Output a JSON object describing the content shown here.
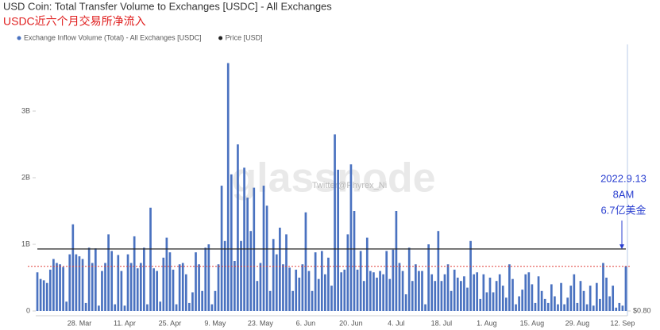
{
  "chart_data": {
    "type": "bar",
    "title": "USD Coin: Total Transfer Volume to Exchanges [USDC] - All Exchanges",
    "subtitle": "USDC近六个月交易所净流入",
    "watermark": "glassnode",
    "watermark_credit": "Twitter@Phyrex_Ni",
    "annotation": [
      "2022.9.13",
      "8AM",
      "6.7亿美金"
    ],
    "reference_line": {
      "value": 0.67,
      "color": "#e0403a"
    },
    "legend_position": "top-left",
    "categories": [
      null,
      null,
      null,
      null,
      null,
      null,
      null,
      null,
      null,
      null,
      null,
      null,
      null,
      "28. Mar",
      null,
      null,
      null,
      null,
      null,
      null,
      null,
      null,
      null,
      null,
      null,
      null,
      null,
      "11. Apr",
      null,
      null,
      null,
      null,
      null,
      null,
      null,
      null,
      null,
      null,
      null,
      null,
      null,
      "25. Apr",
      null,
      null,
      null,
      null,
      null,
      null,
      null,
      null,
      null,
      null,
      null,
      null,
      null,
      "9. May",
      null,
      null,
      null,
      null,
      null,
      null,
      null,
      null,
      null,
      null,
      null,
      null,
      null,
      "23. May",
      null,
      null,
      null,
      null,
      null,
      null,
      null,
      null,
      null,
      null,
      null,
      null,
      null,
      "6. Jun",
      null,
      null,
      null,
      null,
      null,
      null,
      null,
      null,
      null,
      null,
      null,
      null,
      null,
      "20. Jun",
      null,
      null,
      null,
      null,
      null,
      null,
      null,
      null,
      null,
      null,
      null,
      null,
      null,
      "4. Jul",
      null,
      null,
      null,
      null,
      null,
      null,
      null,
      null,
      null,
      null,
      null,
      null,
      null,
      "18. Jul",
      null,
      null,
      null,
      null,
      null,
      null,
      null,
      null,
      null,
      null,
      null,
      null,
      null,
      "1. Aug",
      null,
      null,
      null,
      null,
      null,
      null,
      null,
      null,
      null,
      null,
      null,
      null,
      null,
      "15. Aug",
      null,
      null,
      null,
      null,
      null,
      null,
      null,
      null,
      null,
      null,
      null,
      null,
      null,
      "29. Aug",
      null,
      null,
      null,
      null,
      null,
      null,
      null,
      null,
      null,
      null,
      null,
      null,
      null,
      "12. Sep",
      null
    ],
    "series": [
      {
        "name": "Exchange Inflow Volume (Total) - All Exchanges [USDC]",
        "color": "#4a72c0",
        "values": [
          0.58,
          0.48,
          0.46,
          0.42,
          0.62,
          0.78,
          0.72,
          0.7,
          0.66,
          0.14,
          0.85,
          1.3,
          0.85,
          0.82,
          0.78,
          0.12,
          0.95,
          0.72,
          0.94,
          0.08,
          0.6,
          0.72,
          1.15,
          0.9,
          0.1,
          0.84,
          0.6,
          0.08,
          0.85,
          0.72,
          1.12,
          0.64,
          0.72,
          0.95,
          0.1,
          1.55,
          0.64,
          0.6,
          0.14,
          0.8,
          1.1,
          0.88,
          0.62,
          0.1,
          0.7,
          0.72,
          0.55,
          0.12,
          0.28,
          0.88,
          0.7,
          0.3,
          0.95,
          1.0,
          0.1,
          0.3,
          0.7,
          1.88,
          1.05,
          3.72,
          2.05,
          0.75,
          2.5,
          1.05,
          2.15,
          1.7,
          1.2,
          1.85,
          0.45,
          0.72,
          1.88,
          1.58,
          0.3,
          1.08,
          0.85,
          1.25,
          0.7,
          1.15,
          0.65,
          0.3,
          0.62,
          0.5,
          0.7,
          1.48,
          0.6,
          0.3,
          0.88,
          0.48,
          0.9,
          0.55,
          0.8,
          0.38,
          2.65,
          2.12,
          0.58,
          0.62,
          1.15,
          2.2,
          1.5,
          0.62,
          0.9,
          0.45,
          1.1,
          0.6,
          0.58,
          0.5,
          0.6,
          0.55,
          0.9,
          0.48,
          0.92,
          1.5,
          0.72,
          0.6,
          0.25,
          0.95,
          0.45,
          0.7,
          0.6,
          0.6,
          0.1,
          1.0,
          0.55,
          0.45,
          1.2,
          0.45,
          0.55,
          0.7,
          0.3,
          0.62,
          0.5,
          0.45,
          0.52,
          0.35,
          1.05,
          0.55,
          0.58,
          0.18,
          0.55,
          0.28,
          0.5,
          0.28,
          0.45,
          0.55,
          0.38,
          0.2,
          0.7,
          0.48,
          0.1,
          0.22,
          0.32,
          0.55,
          0.58,
          0.4,
          0.12,
          0.52,
          0.3,
          0.18,
          0.12,
          0.4,
          0.22,
          0.1,
          0.42,
          0.1,
          0.2,
          0.38,
          0.55,
          0.12,
          0.45,
          0.3,
          0.1,
          0.38,
          0.08,
          0.42,
          0.18,
          0.72,
          0.5,
          0.22,
          0.38,
          0.05,
          0.12,
          0.08,
          0.67
        ]
      },
      {
        "name": "Price [USD]",
        "color": "#222222",
        "type": "line",
        "axis": "y2",
        "values": [
          1,
          1,
          1,
          1,
          1,
          1,
          1,
          1,
          1,
          1,
          1,
          1,
          1,
          1,
          1,
          1,
          1,
          1,
          1,
          1,
          1,
          1,
          1,
          1,
          1,
          1,
          1,
          1,
          1,
          1,
          1,
          1,
          1,
          1,
          1,
          1,
          1,
          1,
          1,
          1,
          1,
          1,
          1,
          1,
          1,
          1,
          1,
          1,
          1,
          1,
          1,
          1,
          1,
          1,
          1,
          1,
          1,
          1,
          1,
          1,
          1,
          1,
          1,
          1,
          1,
          1,
          1,
          1,
          1,
          1,
          1,
          1,
          1,
          1,
          1,
          1,
          1,
          1,
          1,
          1,
          1,
          1,
          1,
          1,
          1,
          1,
          1,
          1,
          1,
          1,
          1,
          1,
          1,
          1,
          1,
          1,
          1,
          1,
          1,
          1,
          1,
          1,
          1,
          1,
          1,
          1,
          1,
          1,
          1,
          1,
          1,
          1,
          1,
          1,
          1,
          1,
          1,
          1,
          1,
          1,
          1,
          1,
          1,
          1,
          1,
          1,
          1,
          1,
          1,
          1,
          1,
          1,
          1,
          1,
          1,
          1,
          1,
          1,
          1,
          1,
          1,
          1,
          1,
          1,
          1,
          1,
          1,
          1,
          1,
          1,
          1,
          1,
          1,
          1,
          1,
          1,
          1,
          1,
          1,
          1,
          1,
          1,
          1,
          1,
          1,
          1,
          1,
          1,
          1,
          1,
          1,
          1,
          1,
          1,
          1,
          1,
          1,
          1,
          1,
          1,
          1,
          1,
          1
        ]
      }
    ],
    "ylim": [
      0,
      4
    ],
    "yticks": [
      0,
      {
        "value": 1,
        "label": "1B"
      },
      {
        "value": 2,
        "label": "2B"
      },
      {
        "value": 3,
        "label": "3B"
      }
    ],
    "y2lim": [
      0.8,
      1.66
    ],
    "y2ticks": [
      {
        "value": 0.8,
        "label": "$0.80"
      }
    ],
    "grid": false
  }
}
